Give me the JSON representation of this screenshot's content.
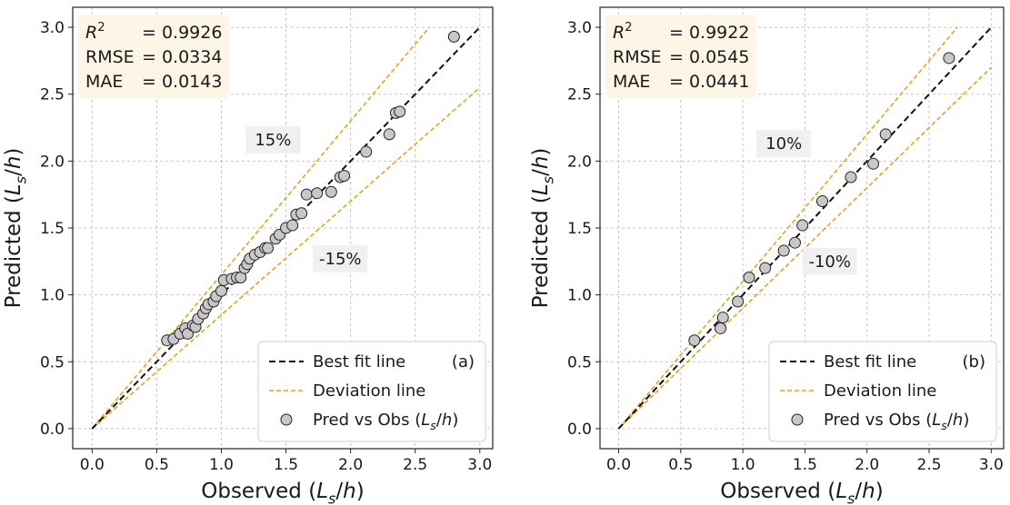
{
  "chart_data": [
    {
      "type": "scatter",
      "panel_label": "(a)",
      "xlabel": "Observed (L_s/h)",
      "ylabel": "Predicted (L_s/h)",
      "xlim": [
        -0.15,
        3.1
      ],
      "ylim": [
        -0.15,
        3.15
      ],
      "xticks": [
        "0.0",
        "0.5",
        "1.0",
        "1.5",
        "2.0",
        "2.5",
        "3.0"
      ],
      "yticks": [
        "0.0",
        "0.5",
        "1.0",
        "1.5",
        "2.0",
        "2.5",
        "3.0"
      ],
      "grid": true,
      "legend_position": "lower-right",
      "stats": {
        "r2": "0.9926",
        "rmse": "0.0334",
        "mae": "0.0143"
      },
      "deviation": 0.15,
      "band_labels": {
        "upper": "15%",
        "lower": "-15%"
      },
      "colors": {
        "points": "#c8c8c8",
        "best_fit": "#111111",
        "deviation": "#e0a326",
        "stats_box": "#fdf5e6"
      },
      "legend": [
        {
          "key": "best_fit",
          "label": "Best fit line"
        },
        {
          "key": "deviation",
          "label": "Deviation line"
        },
        {
          "key": "points",
          "label": "Pred vs Obs (L_s/h)"
        }
      ],
      "series": [
        {
          "name": "Pred vs Obs (L_s/h)",
          "points": [
            [
              0.58,
              0.66
            ],
            [
              0.63,
              0.67
            ],
            [
              0.68,
              0.71
            ],
            [
              0.72,
              0.75
            ],
            [
              0.74,
              0.71
            ],
            [
              0.78,
              0.77
            ],
            [
              0.8,
              0.76
            ],
            [
              0.82,
              0.82
            ],
            [
              0.86,
              0.86
            ],
            [
              0.88,
              0.9
            ],
            [
              0.9,
              0.93
            ],
            [
              0.94,
              0.95
            ],
            [
              0.96,
              0.99
            ],
            [
              1.0,
              1.03
            ],
            [
              1.02,
              1.11
            ],
            [
              1.08,
              1.12
            ],
            [
              1.12,
              1.13
            ],
            [
              1.15,
              1.13
            ],
            [
              1.18,
              1.2
            ],
            [
              1.2,
              1.23
            ],
            [
              1.22,
              1.27
            ],
            [
              1.26,
              1.3
            ],
            [
              1.3,
              1.32
            ],
            [
              1.34,
              1.35
            ],
            [
              1.36,
              1.35
            ],
            [
              1.42,
              1.42
            ],
            [
              1.45,
              1.45
            ],
            [
              1.5,
              1.5
            ],
            [
              1.55,
              1.52
            ],
            [
              1.58,
              1.6
            ],
            [
              1.62,
              1.61
            ],
            [
              1.66,
              1.75
            ],
            [
              1.74,
              1.76
            ],
            [
              1.85,
              1.77
            ],
            [
              1.92,
              1.88
            ],
            [
              1.95,
              1.89
            ],
            [
              2.12,
              2.07
            ],
            [
              2.3,
              2.2
            ],
            [
              2.35,
              2.36
            ],
            [
              2.38,
              2.37
            ],
            [
              2.8,
              2.93
            ]
          ]
        }
      ]
    },
    {
      "type": "scatter",
      "panel_label": "(b)",
      "xlabel": "Observed (L_s/h)",
      "ylabel": "Predicted (L_s/h)",
      "xlim": [
        -0.15,
        3.1
      ],
      "ylim": [
        -0.15,
        3.15
      ],
      "xticks": [
        "0.0",
        "0.5",
        "1.0",
        "1.5",
        "2.0",
        "2.5",
        "3.0"
      ],
      "yticks": [
        "0.0",
        "0.5",
        "1.0",
        "1.5",
        "2.0",
        "2.5",
        "3.0"
      ],
      "grid": true,
      "legend_position": "lower-right",
      "stats": {
        "r2": "0.9922",
        "rmse": "0.0545",
        "mae": "0.0441"
      },
      "deviation": 0.1,
      "band_labels": {
        "upper": "10%",
        "lower": "-10%"
      },
      "colors": {
        "points": "#c8c8c8",
        "best_fit": "#111111",
        "deviation": "#e0a326",
        "stats_box": "#fdf5e6"
      },
      "legend": [
        {
          "key": "best_fit",
          "label": "Best fit line"
        },
        {
          "key": "deviation",
          "label": "Deviation line"
        },
        {
          "key": "points",
          "label": "Pred vs Obs (L_s/h)"
        }
      ],
      "series": [
        {
          "name": "Pred vs Obs (L_s/h)",
          "points": [
            [
              0.61,
              0.66
            ],
            [
              0.82,
              0.75
            ],
            [
              0.84,
              0.83
            ],
            [
              0.96,
              0.95
            ],
            [
              1.05,
              1.13
            ],
            [
              1.18,
              1.2
            ],
            [
              1.33,
              1.33
            ],
            [
              1.42,
              1.39
            ],
            [
              1.48,
              1.52
            ],
            [
              1.64,
              1.7
            ],
            [
              1.87,
              1.88
            ],
            [
              2.05,
              1.98
            ],
            [
              2.15,
              2.2
            ],
            [
              2.66,
              2.77
            ]
          ]
        }
      ]
    }
  ]
}
